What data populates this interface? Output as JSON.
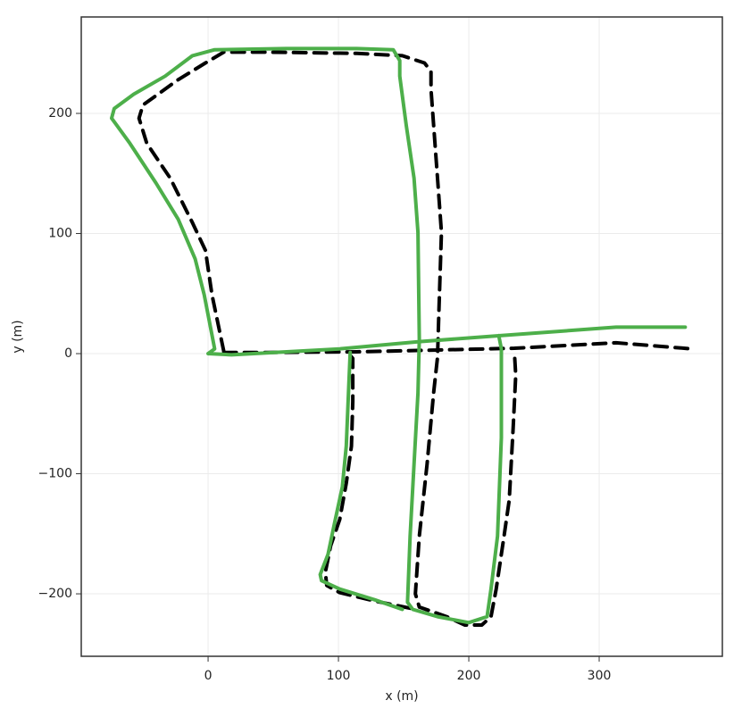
{
  "chart_data": {
    "type": "line",
    "xlabel": "x (m)",
    "ylabel": "y (m)",
    "grid": true,
    "xlim": [
      -97.3,
      394.5
    ],
    "ylim": [
      -252,
      280.3
    ],
    "xticks": [
      0,
      100,
      200,
      300
    ],
    "yticks": [
      {
        "value": -200,
        "label": "−200"
      },
      {
        "value": -100,
        "label": "−100"
      },
      0,
      100,
      200
    ],
    "series": [
      {
        "color": "#4daf4a",
        "linestyle": "solid",
        "x": [
          0,
          5,
          -3,
          -10,
          -23,
          -40,
          -60,
          -74,
          -72,
          -57,
          -33,
          -12,
          5,
          60,
          114,
          142,
          147,
          147,
          152,
          158,
          161,
          162,
          161,
          158,
          155,
          153,
          157,
          176,
          200,
          214,
          217,
          222,
          225,
          225,
          223,
          null,
          149,
          128,
          101,
          87,
          86,
          92,
          97,
          103,
          106,
          108,
          109,
          null,
          0,
          18,
          101,
          162,
          224,
          313,
          366
        ],
        "y": [
          0,
          4,
          49,
          79,
          112,
          142,
          175,
          196,
          204,
          216,
          231,
          248,
          253,
          254,
          254,
          253,
          244,
          231,
          190,
          146,
          101,
          12,
          -33,
          -92,
          -152,
          -207,
          -213,
          -219,
          -224,
          -219,
          -196,
          -152,
          -70,
          4,
          15,
          null,
          -213,
          -205,
          -196,
          -189,
          -184,
          -167,
          -141,
          -111,
          -77,
          -25,
          1,
          null,
          0,
          -1,
          4,
          10,
          15,
          22,
          22
        ]
      },
      {
        "color": "#000000",
        "linestyle": "dashed",
        "x": [
          12,
          3,
          -2,
          -12,
          -29,
          -47,
          -53,
          -50,
          -23,
          -2,
          12,
          46,
          114,
          149,
          166,
          171,
          171,
          176,
          179,
          177,
          176,
          173,
          168,
          162,
          159,
          162,
          183,
          197,
          210,
          217,
          221,
          227,
          231,
          234,
          236,
          235,
          null,
          155,
          128,
          101,
          91,
          90,
          94,
          101,
          106,
          110,
          111,
          111,
          107,
          null,
          12,
          46,
          114,
          176,
          235,
          313,
          371
        ],
        "y": [
          2,
          49,
          86,
          109,
          146,
          175,
          196,
          207,
          228,
          242,
          251,
          251,
          250,
          248,
          242,
          235,
          220,
          146,
          101,
          34,
          -3,
          -33,
          -92,
          -152,
          -200,
          -211,
          -219,
          -226,
          -226,
          -219,
          -196,
          -152,
          -122,
          -62,
          -18,
          1,
          null,
          -212,
          -206,
          -199,
          -193,
          -182,
          -160,
          -138,
          -108,
          -77,
          -40,
          -4,
          1,
          null,
          1,
          1,
          1.5,
          3,
          4.5,
          9,
          4
        ]
      }
    ]
  }
}
